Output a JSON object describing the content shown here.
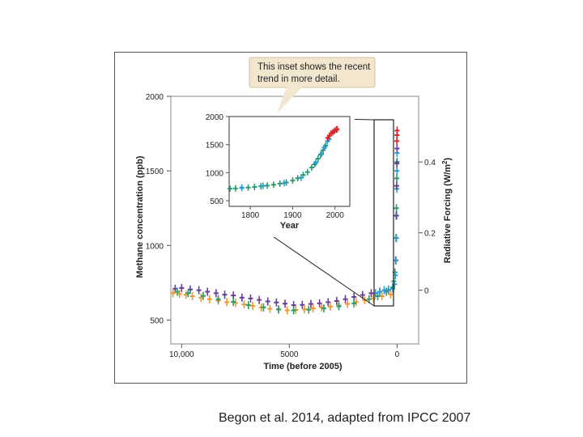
{
  "caption": "Begon et al. 2014, adapted from IPCC 2007",
  "callout": {
    "line1": "This inset shows the recent",
    "line2": "trend in more detail."
  },
  "chart_data": [
    {
      "type": "scatter",
      "panel": "main",
      "xlabel": "Time (before 2005)",
      "ylabel": "Methane concentration (ppb)",
      "y2label_main": "Radiative Forcing (W/m",
      "y2label_sup": "2",
      "y2label_close": ")",
      "x_reversed": true,
      "xlim": [
        10500,
        -1000
      ],
      "ylim": [
        340,
        2000
      ],
      "x_ticks": [
        10000,
        5000,
        0
      ],
      "x_tick_labels": [
        "10,000",
        "5000",
        "0"
      ],
      "y_ticks": [
        500,
        1000,
        1500,
        2000
      ],
      "y_tick_labels": [
        "500",
        "1000",
        "1500",
        "2000"
      ],
      "y2_ticks": [
        {
          "label": "0",
          "ppb_equiv": 700
        },
        {
          "label": "0.2",
          "ppb_equiv": 1085
        },
        {
          "label": "0.4",
          "ppb_equiv": 1560
        }
      ],
      "series": [
        {
          "color": "#6a3d9a",
          "x": [
            10300,
            10000,
            9600,
            9200,
            8800,
            8400,
            8000,
            7600,
            7200,
            6800,
            6400,
            6000,
            5600,
            5200,
            4800,
            4400,
            4000,
            3600,
            3200,
            2800,
            2400,
            2000,
            1600,
            1200,
            800,
            400
          ],
          "y": [
            710,
            715,
            705,
            700,
            690,
            680,
            670,
            665,
            650,
            645,
            635,
            625,
            618,
            610,
            600,
            602,
            608,
            612,
            620,
            628,
            640,
            655,
            668,
            680,
            690,
            700
          ]
        },
        {
          "color": "#f0962a",
          "x": [
            10400,
            10100,
            9800,
            9500,
            9100,
            8700,
            8300,
            7900,
            7500,
            7100,
            6700,
            6300,
            5900,
            5500,
            5100,
            4700,
            4300,
            3900,
            3500,
            3100,
            2700,
            2300,
            1900,
            1500,
            1100,
            700,
            300
          ],
          "y": [
            680,
            675,
            670,
            660,
            650,
            640,
            630,
            620,
            615,
            605,
            595,
            585,
            575,
            570,
            565,
            568,
            572,
            578,
            585,
            590,
            598,
            608,
            620,
            632,
            645,
            660,
            672
          ]
        },
        {
          "color": "#2a9b6e",
          "x": [
            10200,
            9700,
            9000,
            8300,
            7600,
            6900,
            6200,
            5500,
            4800,
            4100,
            3400,
            2700,
            2000,
            1300,
            900,
            500
          ],
          "y": [
            690,
            680,
            662,
            640,
            622,
            600,
            585,
            572,
            565,
            570,
            578,
            592,
            612,
            640,
            660,
            690
          ]
        },
        {
          "color": "#2c9bd4",
          "x": [
            1000,
            800,
            600,
            400,
            200
          ],
          "y": [
            680,
            690,
            700,
            705,
            710
          ]
        },
        {
          "color": "#2a9b6e",
          "x": [
            200,
            150,
            100,
            70,
            50,
            30,
            15,
            0
          ],
          "y": [
            720,
            760,
            820,
            900,
            1050,
            1250,
            1450,
            1560
          ]
        },
        {
          "color": "#2c9bd4",
          "x": [
            120,
            80,
            50,
            30,
            20,
            10,
            5,
            0
          ],
          "y": [
            740,
            800,
            900,
            1050,
            1200,
            1380,
            1500,
            1620
          ]
        },
        {
          "color": "#6a3d9a",
          "x": [
            40,
            20,
            10,
            0
          ],
          "y": [
            1200,
            1400,
            1550,
            1650
          ]
        },
        {
          "color": "#d7262b",
          "x": [
            10,
            5,
            0
          ],
          "y": [
            1700,
            1740,
            1770
          ]
        }
      ]
    },
    {
      "type": "scatter",
      "panel": "inset",
      "xlabel": "Year",
      "ylabel": "",
      "xlim": [
        1750,
        2035
      ],
      "ylim": [
        400,
        2000
      ],
      "x_ticks": [
        1800,
        1900,
        2000
      ],
      "x_tick_labels": [
        "1800",
        "1900",
        "2000"
      ],
      "y_ticks": [
        500,
        1000,
        1500,
        2000
      ],
      "y_tick_labels": [
        "500",
        "1000",
        "1500",
        "2000"
      ],
      "series": [
        {
          "color": "#2a9b6e",
          "x": [
            1752,
            1765,
            1780,
            1795,
            1810,
            1825,
            1840,
            1855,
            1870,
            1885,
            1900,
            1912,
            1925,
            1935,
            1945,
            1952,
            1960,
            1966,
            1972,
            1978
          ],
          "y": [
            715,
            720,
            728,
            735,
            745,
            758,
            770,
            785,
            805,
            825,
            860,
            900,
            960,
            1010,
            1090,
            1150,
            1250,
            1320,
            1400,
            1480
          ]
        },
        {
          "color": "#2c9bd4",
          "x": [
            1780,
            1830,
            1880,
            1920,
            1955,
            1968,
            1975,
            1982,
            1986
          ],
          "y": [
            735,
            765,
            815,
            910,
            1180,
            1330,
            1450,
            1560,
            1600
          ]
        },
        {
          "color": "#d7262b",
          "x": [
            1983,
            1987,
            1991,
            1995,
            1999,
            2003,
            2005
          ],
          "y": [
            1620,
            1660,
            1700,
            1720,
            1745,
            1765,
            1775
          ]
        }
      ]
    }
  ]
}
